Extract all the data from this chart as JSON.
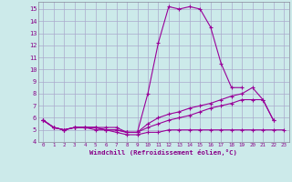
{
  "x": [
    0,
    1,
    2,
    3,
    4,
    5,
    6,
    7,
    8,
    9,
    10,
    11,
    12,
    13,
    14,
    15,
    16,
    17,
    18,
    19,
    20,
    21,
    22,
    23
  ],
  "line1": [
    5.8,
    5.2,
    5.0,
    5.2,
    5.2,
    5.2,
    5.2,
    5.2,
    4.8,
    4.8,
    8.0,
    12.2,
    15.2,
    15.0,
    15.2,
    15.0,
    13.5,
    10.5,
    8.5,
    8.5,
    null,
    null,
    null,
    null
  ],
  "line2": [
    5.8,
    5.2,
    5.0,
    5.2,
    5.2,
    5.2,
    5.0,
    5.0,
    4.8,
    4.8,
    5.5,
    6.0,
    6.3,
    6.5,
    6.8,
    7.0,
    7.2,
    7.5,
    7.8,
    8.0,
    8.5,
    7.5,
    5.8,
    null
  ],
  "line3": [
    5.8,
    5.2,
    5.0,
    5.2,
    5.2,
    5.2,
    5.0,
    5.0,
    4.8,
    4.8,
    5.2,
    5.5,
    5.8,
    6.0,
    6.2,
    6.5,
    6.8,
    7.0,
    7.2,
    7.5,
    7.5,
    7.5,
    5.8,
    null
  ],
  "line4": [
    5.8,
    5.2,
    5.0,
    5.2,
    5.2,
    5.0,
    5.0,
    4.8,
    4.6,
    4.6,
    4.8,
    4.8,
    5.0,
    5.0,
    5.0,
    5.0,
    5.0,
    5.0,
    5.0,
    5.0,
    5.0,
    5.0,
    5.0,
    5.0
  ],
  "line_color": "#990099",
  "bg_color": "#cceaea",
  "grid_color": "#aaaacc",
  "xlabel": "Windchill (Refroidissement éolien,°C)",
  "ylim": [
    4,
    15.6
  ],
  "xlim": [
    -0.5,
    23.5
  ],
  "yticks": [
    4,
    5,
    6,
    7,
    8,
    9,
    10,
    11,
    12,
    13,
    14,
    15
  ],
  "xticks": [
    0,
    1,
    2,
    3,
    4,
    5,
    6,
    7,
    8,
    9,
    10,
    11,
    12,
    13,
    14,
    15,
    16,
    17,
    18,
    19,
    20,
    21,
    22,
    23
  ]
}
